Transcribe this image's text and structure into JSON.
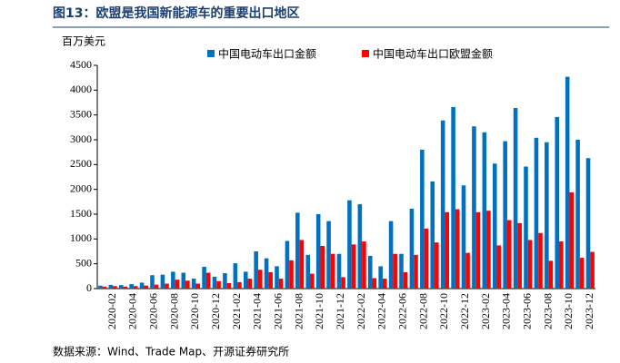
{
  "chart_data": {
    "type": "bar",
    "title": "图13：欧盟是我国新能源车的重要出口地区",
    "y_label": "百万美元",
    "source": "数据来源：Wind、Trade Map、开源证券研究所",
    "categories": [
      null,
      "2020-02",
      null,
      "2020-04",
      null,
      "2020-06",
      null,
      "2020-08",
      null,
      "2020-10",
      null,
      "2020-12",
      null,
      "2021-02",
      null,
      "2021-04",
      null,
      "2021-06",
      null,
      "2021-08",
      null,
      "2021-10",
      null,
      "2021-12",
      null,
      "2022-02",
      null,
      "2022-04",
      null,
      "2022-06",
      null,
      "2022-08",
      null,
      "2022-10",
      null,
      "2022-12",
      null,
      "2023-02",
      null,
      "2023-04",
      null,
      "2023-06",
      null,
      "2023-08",
      null,
      "2023-10",
      null,
      "2023-12"
    ],
    "series": [
      {
        "name": "中国电动车出口金额",
        "color": "#0070c0",
        "values": [
          60,
          75,
          70,
          90,
          120,
          270,
          280,
          340,
          320,
          200,
          440,
          240,
          310,
          510,
          340,
          750,
          610,
          450,
          960,
          1530,
          680,
          1500,
          1360,
          700,
          1780,
          1700,
          660,
          450,
          1360,
          700,
          1610,
          2800,
          2160,
          3390,
          3660,
          2080,
          3270,
          3150,
          2520,
          2970,
          3640,
          2460,
          3040,
          2950,
          3460,
          4270,
          3000,
          2630
        ]
      },
      {
        "name": "中国电动车出口欧盟金额",
        "color": "#ff0000",
        "values": [
          40,
          50,
          40,
          50,
          60,
          80,
          100,
          180,
          160,
          100,
          320,
          150,
          110,
          130,
          200,
          380,
          330,
          200,
          570,
          980,
          300,
          860,
          700,
          230,
          890,
          950,
          210,
          200,
          700,
          330,
          680,
          1210,
          930,
          1540,
          1600,
          720,
          1540,
          1570,
          870,
          1380,
          1320,
          980,
          1120,
          560,
          950,
          1940,
          620,
          740
        ]
      }
    ],
    "ylim": [
      0,
      4500
    ],
    "yticks": [
      0,
      500,
      1000,
      1500,
      2000,
      2500,
      3000,
      3500,
      4000,
      4500
    ],
    "grid": false,
    "legend": "top"
  }
}
